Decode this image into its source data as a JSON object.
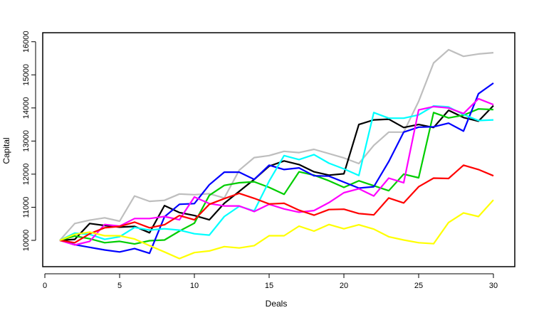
{
  "chart_data": {
    "type": "line",
    "title": "",
    "xlabel": "Deals",
    "ylabel": "Capital",
    "xlim": [
      0,
      31
    ],
    "ylim": [
      9300,
      16150
    ],
    "x_ticks": [
      0,
      5,
      10,
      15,
      20,
      25,
      30
    ],
    "y_ticks": [
      10000,
      11000,
      12000,
      13000,
      14000,
      15000,
      16000
    ],
    "grid": false,
    "legend": "none",
    "x": [
      1,
      2,
      3,
      4,
      5,
      6,
      7,
      8,
      9,
      10,
      11,
      12,
      13,
      14,
      15,
      16,
      17,
      18,
      19,
      20,
      21,
      22,
      23,
      24,
      25,
      26,
      27,
      28,
      29,
      30
    ],
    "series": [
      {
        "color": "#bebebe",
        "values": [
          10000,
          10510,
          10610,
          10680,
          10580,
          11340,
          11180,
          11210,
          11400,
          11380,
          11410,
          11280,
          12120,
          12500,
          12560,
          12690,
          12650,
          12750,
          12620,
          12490,
          12320,
          12870,
          13270,
          13270,
          14200,
          15360,
          15760,
          15560,
          15630,
          15670
        ]
      },
      {
        "color": "#000000",
        "values": [
          10000,
          10030,
          10510,
          10450,
          10400,
          10420,
          10230,
          11050,
          10840,
          10750,
          10620,
          11120,
          11480,
          11840,
          12240,
          12400,
          12290,
          12070,
          11970,
          12010,
          13500,
          13640,
          13660,
          13410,
          13500,
          13410,
          13930,
          13710,
          13600,
          14070
        ]
      },
      {
        "color": "#00cd00",
        "values": [
          10000,
          10130,
          10050,
          9930,
          9970,
          9890,
          9990,
          10010,
          10280,
          10520,
          11360,
          11660,
          11740,
          11770,
          11600,
          11390,
          12070,
          11970,
          11800,
          11600,
          11800,
          11650,
          11500,
          12000,
          11890,
          13860,
          13700,
          13780,
          13970,
          13950
        ]
      },
      {
        "color": "#0000ff",
        "values": [
          10000,
          9870,
          9790,
          9710,
          9650,
          9750,
          9610,
          10710,
          11090,
          11110,
          11680,
          12060,
          12060,
          11840,
          12270,
          12140,
          12190,
          11950,
          11940,
          11760,
          11580,
          11620,
          12380,
          13270,
          13420,
          13430,
          13540,
          13300,
          14430,
          14750
        ]
      },
      {
        "color": "#00ffff",
        "values": [
          10000,
          10220,
          10180,
          10030,
          10110,
          10390,
          10310,
          10350,
          10310,
          10200,
          10160,
          10720,
          11030,
          10890,
          11790,
          12560,
          12440,
          12590,
          12330,
          12160,
          11960,
          13860,
          13690,
          13690,
          13790,
          14060,
          14030,
          13800,
          13620,
          13640
        ]
      },
      {
        "color": "#ff00ff",
        "values": [
          10000,
          9860,
          9970,
          10480,
          10430,
          10660,
          10660,
          10720,
          10620,
          11310,
          11110,
          11040,
          11040,
          10870,
          11090,
          10950,
          10850,
          10900,
          11140,
          11440,
          11560,
          11340,
          11880,
          11740,
          13940,
          14040,
          14000,
          13830,
          14280,
          14100
        ]
      },
      {
        "color": "#ff0000",
        "values": [
          10000,
          9930,
          10200,
          10380,
          10420,
          10550,
          10380,
          10470,
          10750,
          10620,
          11090,
          11260,
          11420,
          11270,
          11100,
          11120,
          10910,
          10760,
          10930,
          10940,
          10810,
          10770,
          11280,
          11130,
          11620,
          11880,
          11870,
          12270,
          12140,
          11950
        ]
      },
      {
        "color": "#ffff00",
        "values": [
          10000,
          10180,
          10250,
          10140,
          10140,
          10040,
          9840,
          9650,
          9450,
          9630,
          9680,
          9810,
          9770,
          9840,
          10140,
          10140,
          10430,
          10280,
          10480,
          10350,
          10470,
          10340,
          10110,
          10010,
          9930,
          9900,
          10540,
          10830,
          10720,
          11220
        ]
      }
    ]
  }
}
